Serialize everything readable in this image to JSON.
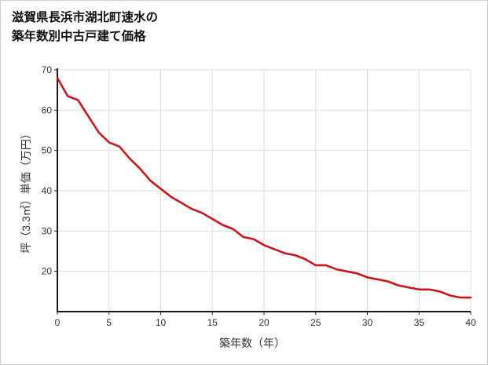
{
  "page": {
    "background": "#ffffff",
    "border_color": "#cfcfcf"
  },
  "title": {
    "line1": "滋賀県長浜市湖北町速水の",
    "line2": "築年数別中古戸建て価格"
  },
  "chart_data": {
    "type": "line",
    "title": "滋賀県長浜市湖北町速水の築年数別中古戸建て価格",
    "xlabel": "築年数（年）",
    "ylabel": "坪（3.3㎡）単価（万円）",
    "xlim": [
      0,
      40
    ],
    "ylim": [
      10,
      70
    ],
    "x_ticks": [
      0,
      5,
      10,
      15,
      20,
      25,
      30,
      35,
      40
    ],
    "y_ticks": [
      20,
      30,
      40,
      50,
      60,
      70
    ],
    "grid": true,
    "legend": "none",
    "line_color": "#c9161d",
    "grid_color": "#dddddd",
    "axis_color": "#1a1a1a",
    "tick_color": "#333333",
    "x": [
      0,
      1,
      2,
      3,
      4,
      5,
      6,
      7,
      8,
      9,
      10,
      11,
      12,
      13,
      14,
      15,
      16,
      17,
      18,
      19,
      20,
      21,
      22,
      23,
      24,
      25,
      26,
      27,
      28,
      29,
      30,
      31,
      32,
      33,
      34,
      35,
      36,
      37,
      38,
      39,
      40
    ],
    "y": [
      68,
      63.5,
      62.5,
      58.5,
      54.5,
      52,
      51,
      48,
      45.5,
      42.5,
      40.5,
      38.5,
      37,
      35.5,
      34.5,
      33,
      31.5,
      30.5,
      28.5,
      28,
      26.5,
      25.5,
      24.5,
      24,
      23,
      21.5,
      21.5,
      20.5,
      20,
      19.5,
      18.5,
      18,
      17.5,
      16.5,
      16,
      15.5,
      15.5,
      15,
      14,
      13.5,
      13.5
    ]
  }
}
